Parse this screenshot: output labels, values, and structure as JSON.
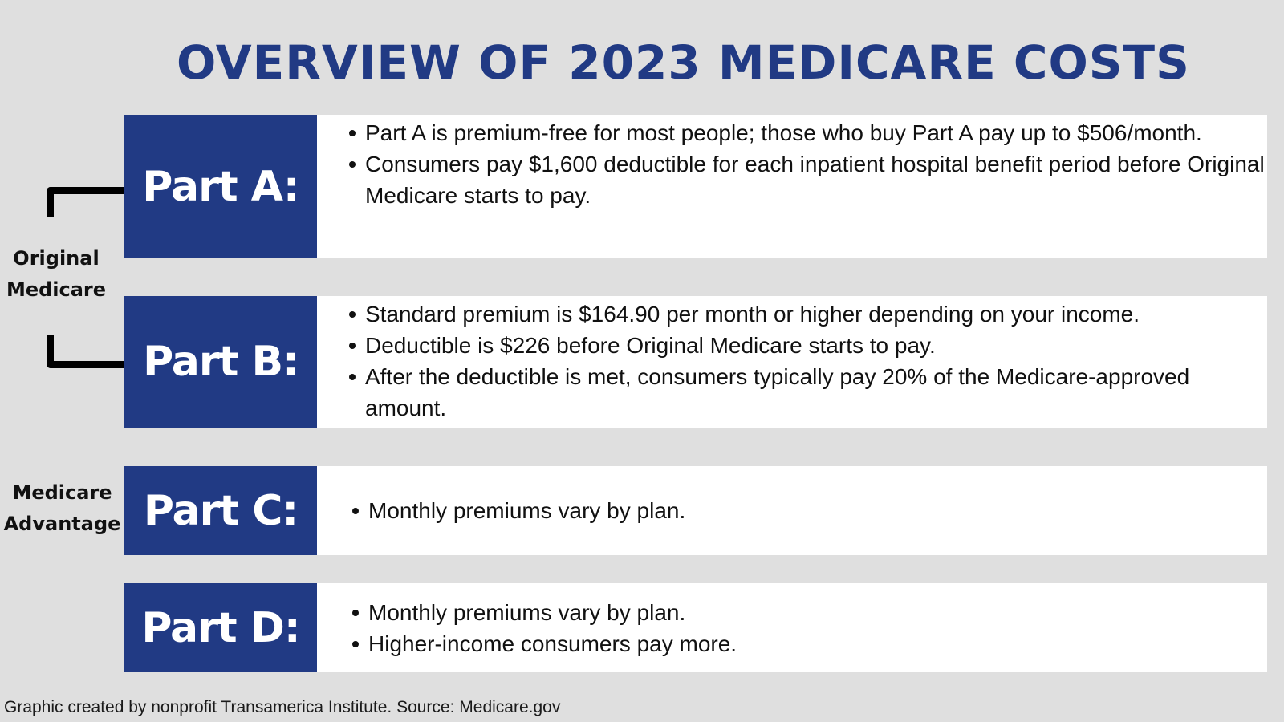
{
  "title": "OVERVIEW OF 2023 MEDICARE COSTS",
  "colors": {
    "background": "#dfdfdf",
    "accent_navy": "#213a84",
    "panel": "#ffffff",
    "text": "#111111"
  },
  "groups": {
    "original": {
      "label_line1": "Original",
      "label_line2": "Medicare"
    },
    "advantage": {
      "label_line1": "Medicare",
      "label_line2": "Advantage"
    }
  },
  "parts": [
    {
      "label": "Part A:",
      "bullets": [
        "Part A is premium-free for most people; those who buy Part A pay up to $506/month.",
        "Consumers pay $1,600 deductible for each inpatient hospital benefit period before Original Medicare starts to pay."
      ]
    },
    {
      "label": "Part B:",
      "bullets": [
        "Standard premium is $164.90 per month or higher depending on your income.",
        "Deductible is $226 before Original Medicare starts to pay.",
        "After the deductible is met, consumers typically pay 20% of the Medicare-approved amount."
      ]
    },
    {
      "label": "Part C:",
      "bullets": [
        "Monthly premiums vary by plan."
      ]
    },
    {
      "label": "Part D:",
      "bullets": [
        "Monthly premiums vary by plan.",
        "Higher-income consumers pay more."
      ]
    }
  ],
  "footer": "Graphic created by nonprofit Transamerica Institute. Source: Medicare.gov"
}
